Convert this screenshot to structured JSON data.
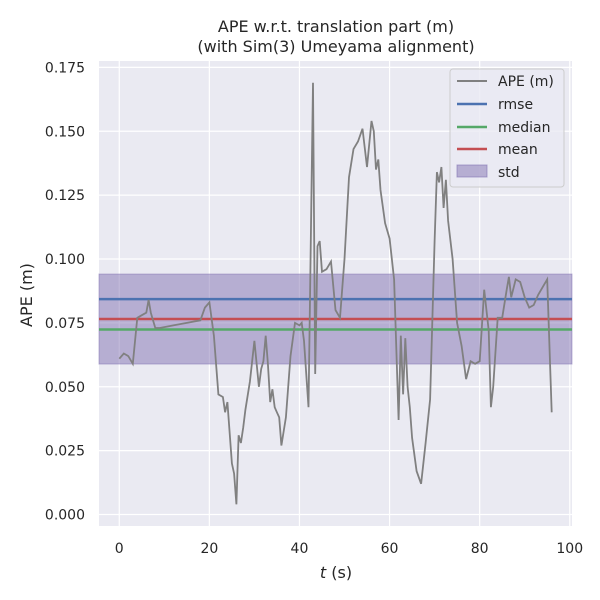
{
  "chart_data": {
    "type": "line",
    "title": "APE w.r.t. translation part (m)",
    "subtitle": "(with Sim(3) Umeyama alignment)",
    "xlabel_italic": "t",
    "xlabel_rest": " (s)",
    "ylabel": "APE (m)",
    "xlim": [
      -4.5,
      100.5
    ],
    "ylim": [
      -0.0045,
      0.1775
    ],
    "xticks": [
      0,
      20,
      40,
      60,
      80,
      100
    ],
    "xtick_labels": [
      "0",
      "20",
      "40",
      "60",
      "80",
      "100"
    ],
    "yticks": [
      0.0,
      0.025,
      0.05,
      0.075,
      0.1,
      0.125,
      0.15,
      0.175
    ],
    "ytick_labels": [
      "0.000",
      "0.025",
      "0.050",
      "0.075",
      "0.100",
      "0.125",
      "0.150",
      "0.175"
    ],
    "grid": true,
    "legend_position": "top-right",
    "colors": {
      "background": "#eaeaf2",
      "grid": "#ffffff",
      "ape": "#808080",
      "rmse": "#4c72b0",
      "median": "#55a868",
      "mean": "#c44e52",
      "std": "#8172b2"
    },
    "stats": {
      "rmse": 0.0843,
      "median": 0.0724,
      "mean": 0.0765,
      "std_band": [
        0.0589,
        0.0941
      ]
    },
    "legend": [
      "APE (m)",
      "rmse",
      "median",
      "mean",
      "std"
    ],
    "series": [
      {
        "name": "APE (m)",
        "x": [
          0,
          1,
          2,
          3,
          4,
          5,
          6,
          6.5,
          7,
          8,
          9,
          12,
          15,
          18,
          19,
          20,
          21,
          22,
          23,
          23.5,
          24,
          25,
          25.5,
          26,
          26.5,
          27,
          27.5,
          28,
          29,
          30,
          31,
          31.5,
          32,
          32.5,
          33,
          33.5,
          34,
          34.5,
          35,
          35.5,
          36,
          37,
          38,
          39,
          40,
          40.5,
          41,
          42,
          43,
          43.5,
          44,
          44.5,
          45,
          46,
          47,
          48,
          49,
          50,
          51,
          52,
          53,
          54,
          55,
          56,
          56.5,
          57,
          57.5,
          58,
          59,
          60,
          61,
          62,
          62.5,
          63,
          63.5,
          64,
          64.5,
          65,
          66,
          67,
          68,
          69,
          70,
          70.5,
          71,
          71.5,
          72,
          72.5,
          73,
          74,
          75,
          76,
          77,
          78,
          79,
          80,
          81,
          82,
          82.5,
          83,
          84,
          85,
          86,
          86.5,
          87,
          88,
          89,
          90,
          91,
          92,
          93,
          94,
          95,
          96
        ],
        "values": [
          0.061,
          0.063,
          0.062,
          0.059,
          0.077,
          0.078,
          0.079,
          0.084,
          0.079,
          0.073,
          0.073,
          0.074,
          0.075,
          0.076,
          0.081,
          0.083,
          0.07,
          0.047,
          0.046,
          0.04,
          0.044,
          0.02,
          0.016,
          0.004,
          0.031,
          0.028,
          0.034,
          0.041,
          0.052,
          0.068,
          0.05,
          0.057,
          0.06,
          0.07,
          0.059,
          0.044,
          0.049,
          0.042,
          0.04,
          0.038,
          0.027,
          0.038,
          0.062,
          0.075,
          0.074,
          0.075,
          0.068,
          0.042,
          0.169,
          0.055,
          0.105,
          0.107,
          0.095,
          0.096,
          0.099,
          0.08,
          0.077,
          0.1,
          0.132,
          0.143,
          0.146,
          0.151,
          0.136,
          0.154,
          0.15,
          0.135,
          0.139,
          0.127,
          0.114,
          0.108,
          0.092,
          0.037,
          0.07,
          0.047,
          0.069,
          0.05,
          0.042,
          0.03,
          0.017,
          0.012,
          0.028,
          0.045,
          0.107,
          0.134,
          0.13,
          0.136,
          0.12,
          0.131,
          0.115,
          0.1,
          0.075,
          0.066,
          0.053,
          0.06,
          0.059,
          0.06,
          0.088,
          0.072,
          0.042,
          0.05,
          0.077,
          0.077,
          0.088,
          0.093,
          0.085,
          0.092,
          0.091,
          0.085,
          0.081,
          0.082,
          0.086,
          0.089,
          0.092,
          0.04
        ]
      }
    ]
  }
}
